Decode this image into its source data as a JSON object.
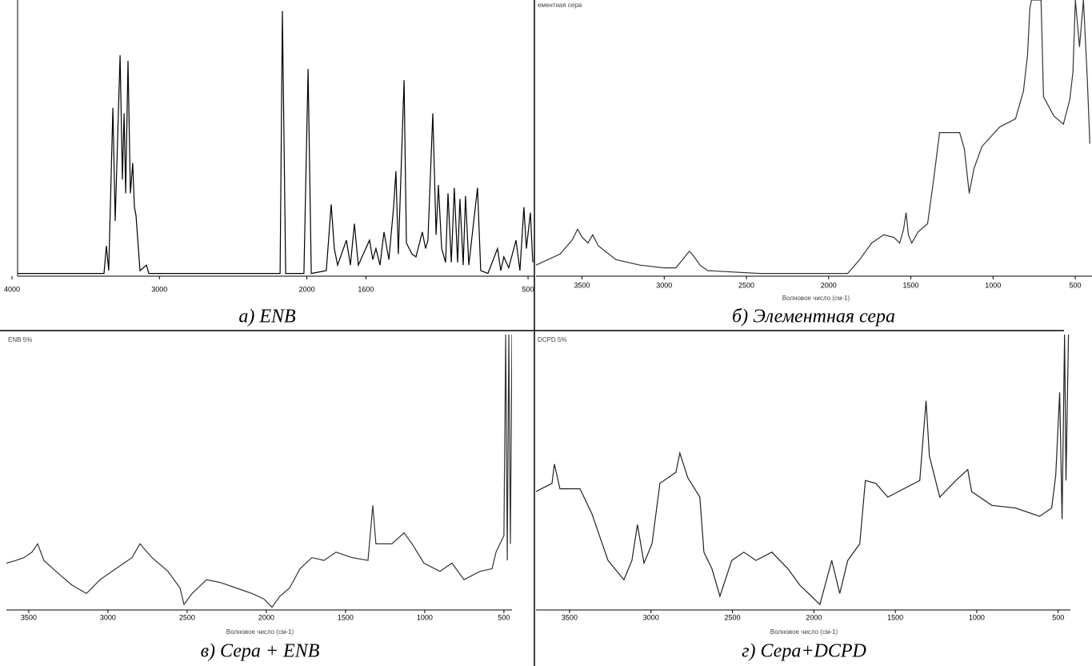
{
  "chart_data": [
    {
      "type": "line",
      "caption": "а) ENB",
      "xlim": [
        4000,
        457
      ],
      "ylim": [
        0,
        100
      ],
      "xticks": [
        4000,
        3000,
        2000,
        1600,
        500
      ],
      "x": [
        3962,
        3430,
        3376,
        3360,
        3344,
        3316,
        3300,
        3267,
        3251,
        3240,
        3229,
        3213,
        3197,
        3181,
        3170,
        3159,
        3132,
        3088,
        3072,
        2725,
        2454,
        2210,
        2182,
        2166,
        2144,
        2020,
        1992,
        1970,
        1868,
        1835,
        1814,
        1792,
        1732,
        1705,
        1678,
        1651,
        1575,
        1553,
        1532,
        1504,
        1477,
        1444,
        1412,
        1396,
        1380,
        1341,
        1325,
        1287,
        1260,
        1217,
        1195,
        1179,
        1146,
        1124,
        1108,
        1086,
        1059,
        1043,
        1021,
        1000,
        978,
        962,
        940,
        924,
        902,
        843,
        821,
        772,
        707,
        685,
        664,
        631,
        582,
        555,
        528,
        511,
        484,
        468
      ],
      "series": [
        {
          "color": "#000000",
          "values": [
            1,
            1,
            1,
            11,
            2,
            61,
            20,
            80,
            35,
            59,
            30,
            78,
            30,
            41,
            25,
            22,
            2,
            4,
            1,
            1,
            1,
            1,
            1,
            96,
            1,
            1,
            75,
            1,
            2,
            26,
            10,
            4,
            13,
            4,
            19,
            4,
            13,
            6,
            10,
            4,
            16,
            6,
            25,
            38,
            8,
            71,
            12,
            8,
            7,
            16,
            10,
            13,
            59,
            15,
            33,
            10,
            5,
            30,
            5,
            32,
            5,
            28,
            4,
            29,
            4,
            32,
            2,
            1,
            10,
            2,
            7,
            3,
            13,
            2,
            25,
            10,
            23,
            5
          ]
        }
      ]
    },
    {
      "type": "line",
      "caption": "б) Элементная сера",
      "title": "ементная сера",
      "xlabel": "Волновое число (см-1)",
      "xlim": [
        3780,
        398
      ],
      "ylim": [
        0,
        100
      ],
      "xticks": [
        3500,
        3000,
        2500,
        2000,
        1500,
        1000,
        500
      ],
      "x": [
        3780,
        3634,
        3561,
        3527,
        3498,
        3464,
        3435,
        3401,
        3294,
        3148,
        3002,
        2929,
        2847,
        2817,
        2783,
        2735,
        2419,
        2176,
        1884,
        1811,
        1738,
        1665,
        1602,
        1568,
        1544,
        1529,
        1515,
        1495,
        1456,
        1398,
        1359,
        1325,
        1203,
        1174,
        1145,
        1116,
        1067,
        960,
        863,
        815,
        790,
        776,
        766,
        708,
        693,
        630,
        572,
        533,
        514,
        499,
        474,
        450,
        426,
        411
      ],
      "series": [
        {
          "color": "#333333",
          "values": [
            4,
            8,
            13,
            17,
            14,
            12,
            15,
            11,
            6,
            4,
            3,
            3,
            9,
            7,
            4,
            2,
            1,
            1,
            1,
            6,
            12,
            15,
            14,
            12,
            17,
            23,
            15,
            12,
            16,
            19,
            36,
            52,
            52,
            46,
            30,
            39,
            47,
            54,
            57,
            67,
            80,
            97,
            100,
            100,
            65,
            58,
            55,
            64,
            74,
            100,
            83,
            100,
            71,
            48
          ]
        }
      ]
    },
    {
      "type": "line",
      "caption": "в) Сера + ENB",
      "title": "ENB 5%",
      "xlabel": "Волновое число (см-1)",
      "xlim": [
        3641,
        449
      ],
      "ylim": [
        0,
        100
      ],
      "xticks": [
        3500,
        3000,
        2500,
        2000,
        1500,
        1000,
        500
      ],
      "x": [
        3641,
        3580,
        3530,
        3480,
        3444,
        3404,
        3328,
        3227,
        3136,
        3050,
        2949,
        2848,
        2798,
        2722,
        2621,
        2545,
        2520,
        2469,
        2378,
        2292,
        2191,
        2090,
        2015,
        1964,
        1914,
        1853,
        1787,
        1712,
        1636,
        1560,
        1459,
        1358,
        1328,
        1308,
        1207,
        1131,
        1080,
        1005,
        904,
        828,
        752,
        651,
        575,
        550,
        500,
        489,
        479,
        469,
        459,
        449
      ],
      "series": [
        {
          "color": "#333333",
          "values": [
            17,
            18,
            19,
            21,
            24,
            18,
            14,
            9,
            6,
            11,
            15,
            19,
            24,
            19,
            14,
            8,
            2,
            6,
            11,
            10,
            8,
            6,
            4,
            1,
            5,
            8,
            15,
            19,
            18,
            21,
            19,
            18,
            38,
            24,
            24,
            28,
            24,
            17,
            14,
            17,
            11,
            14,
            15,
            21,
            27,
            100,
            18,
            100,
            24,
            100
          ]
        }
      ]
    },
    {
      "type": "line",
      "caption": "г) Сера+DCPD",
      "title": "DCPD 5%",
      "xlabel": "Волновое число (см-1)",
      "xlim": [
        3706,
        425
      ],
      "ylim": [
        0,
        100
      ],
      "xticks": [
        3500,
        3000,
        2500,
        2000,
        1500,
        1000,
        500
      ],
      "x": [
        3706,
        3608,
        3593,
        3559,
        3436,
        3363,
        3264,
        3166,
        3117,
        3083,
        3043,
        2994,
        2945,
        2847,
        2823,
        2774,
        2700,
        2675,
        2626,
        2577,
        2504,
        2430,
        2356,
        2258,
        2160,
        2086,
        1963,
        1890,
        1841,
        1792,
        1718,
        1684,
        1620,
        1546,
        1448,
        1350,
        1311,
        1291,
        1227,
        1129,
        1055,
        1031,
        908,
        761,
        614,
        540,
        515,
        491,
        476,
        461,
        452,
        437
      ],
      "series": [
        {
          "color": "#222222",
          "values": [
            43,
            46,
            53,
            44,
            44,
            35,
            18,
            11,
            18,
            31,
            17,
            24,
            46,
            50,
            57,
            48,
            41,
            21,
            15,
            5,
            18,
            21,
            18,
            21,
            15,
            9,
            2,
            18,
            6,
            18,
            24,
            47,
            46,
            41,
            44,
            47,
            76,
            56,
            41,
            47,
            51,
            43,
            38,
            37,
            34,
            37,
            49,
            79,
            33,
            100,
            47,
            100
          ]
        }
      ]
    }
  ]
}
